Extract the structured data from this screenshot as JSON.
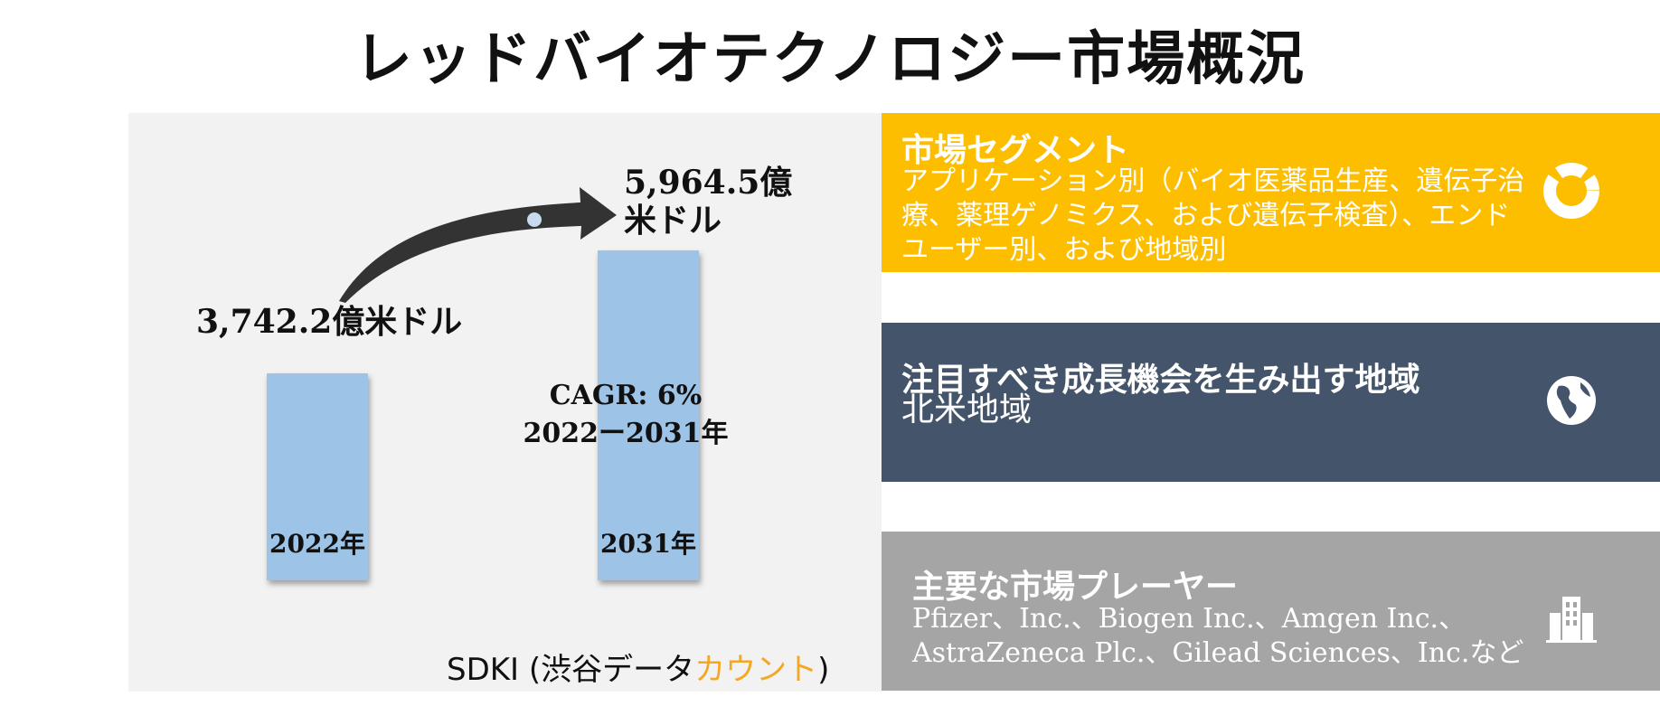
{
  "title": "レッドバイオテクノロジー市場概況",
  "chart_data": {
    "type": "bar",
    "categories": [
      "2022年",
      "2031年"
    ],
    "values": [
      3742.2,
      5964.5
    ],
    "value_labels": [
      "3,742.2億米ドル",
      "5,964.5億米ドル"
    ],
    "annotation": {
      "cagr": "CAGR: 6%",
      "period": "2022ー2031年"
    }
  },
  "source": {
    "prefix": "SDKI (渋谷データ",
    "accent": "カウント",
    "suffix": ")"
  },
  "cards": {
    "segments": {
      "title": "市場セグメント",
      "body": "アプリケーション別（バイオ医薬品生産、遺伝子治療、薬理ゲノミクス、および遺伝子検査）、エンドユーザー別、および地域別",
      "icon": "donut-chart-icon",
      "color": "#fdbe00"
    },
    "region": {
      "title": "注目すべき成長機会を生み出す地域",
      "body": "北米地域",
      "icon": "globe-icon",
      "color": "#44546a"
    },
    "players": {
      "title": "主要な市場プレーヤー",
      "body_line1": "Pfizer、Inc.、Biogen Inc.、Amgen Inc.、",
      "body_line2": "AstraZeneca Plc.、Gilead Sciences、Inc.など",
      "icon": "building-icon",
      "color": "#a5a5a5"
    }
  }
}
